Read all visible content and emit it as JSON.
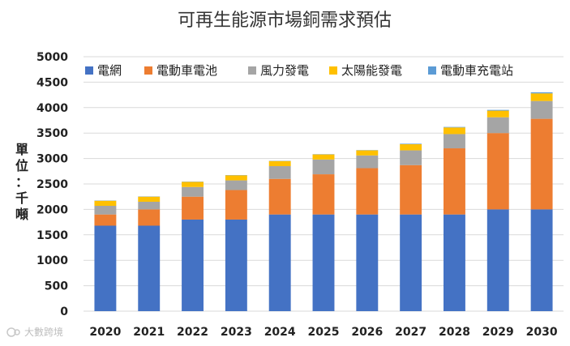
{
  "chart_data": {
    "type": "bar",
    "stacked": true,
    "title": "可再生能源市場銅需求預估",
    "ylabel_chars": [
      "單",
      "位",
      "：",
      "千",
      "噸"
    ],
    "categories": [
      "2020",
      "2021",
      "2022",
      "2023",
      "2024",
      "2025",
      "2026",
      "2027",
      "2028",
      "2029",
      "2030"
    ],
    "ylim": [
      0,
      5000
    ],
    "yticks": [
      0,
      500,
      1000,
      1500,
      2000,
      2500,
      3000,
      3500,
      4000,
      4500,
      5000
    ],
    "grid": true,
    "legend_position": "top",
    "series": [
      {
        "name": "電網",
        "color": "#4472c4",
        "values": [
          1680,
          1680,
          1800,
          1800,
          1900,
          1900,
          1900,
          1900,
          1900,
          2000,
          2000
        ]
      },
      {
        "name": "電動車電池",
        "color": "#ed7d31",
        "values": [
          220,
          320,
          450,
          580,
          700,
          790,
          910,
          970,
          1300,
          1500,
          1780
        ]
      },
      {
        "name": "風力發電",
        "color": "#a5a5a5",
        "values": [
          170,
          150,
          190,
          190,
          250,
          290,
          250,
          290,
          280,
          310,
          350
        ]
      },
      {
        "name": "太陽能發電",
        "color": "#ffc000",
        "values": [
          100,
          100,
          100,
          100,
          100,
          100,
          100,
          120,
          130,
          130,
          150
        ]
      },
      {
        "name": "電動車充電站",
        "color": "#5b9bd5",
        "values": [
          5,
          5,
          5,
          5,
          5,
          5,
          5,
          10,
          10,
          15,
          20
        ]
      }
    ]
  },
  "watermark": "大數跨境"
}
